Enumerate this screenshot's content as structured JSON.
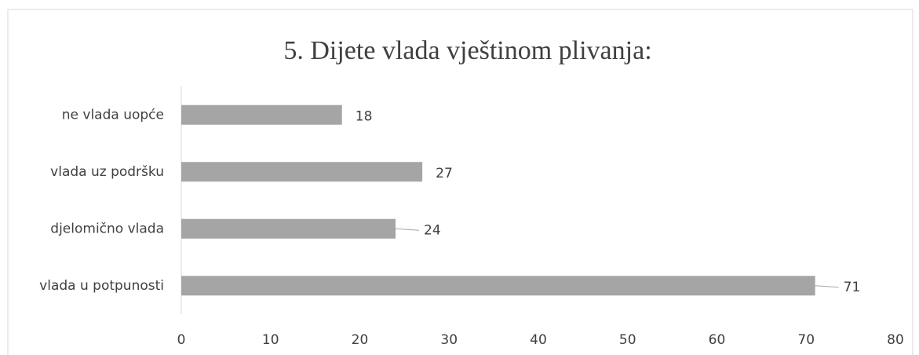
{
  "chart_data": {
    "type": "bar",
    "orientation": "horizontal",
    "title": "5. Dijete vlada vještinom plivanja:",
    "categories": [
      "ne vlada uopće",
      "vlada uz podršku",
      "djelomično vlada",
      "vlada u potpunosti"
    ],
    "values": [
      18,
      27,
      24,
      71
    ],
    "color": "#a5a5a5",
    "xlim": [
      0,
      80
    ],
    "xticks": [
      0,
      10,
      20,
      30,
      40,
      50,
      60,
      70,
      80
    ],
    "grid": false
  }
}
